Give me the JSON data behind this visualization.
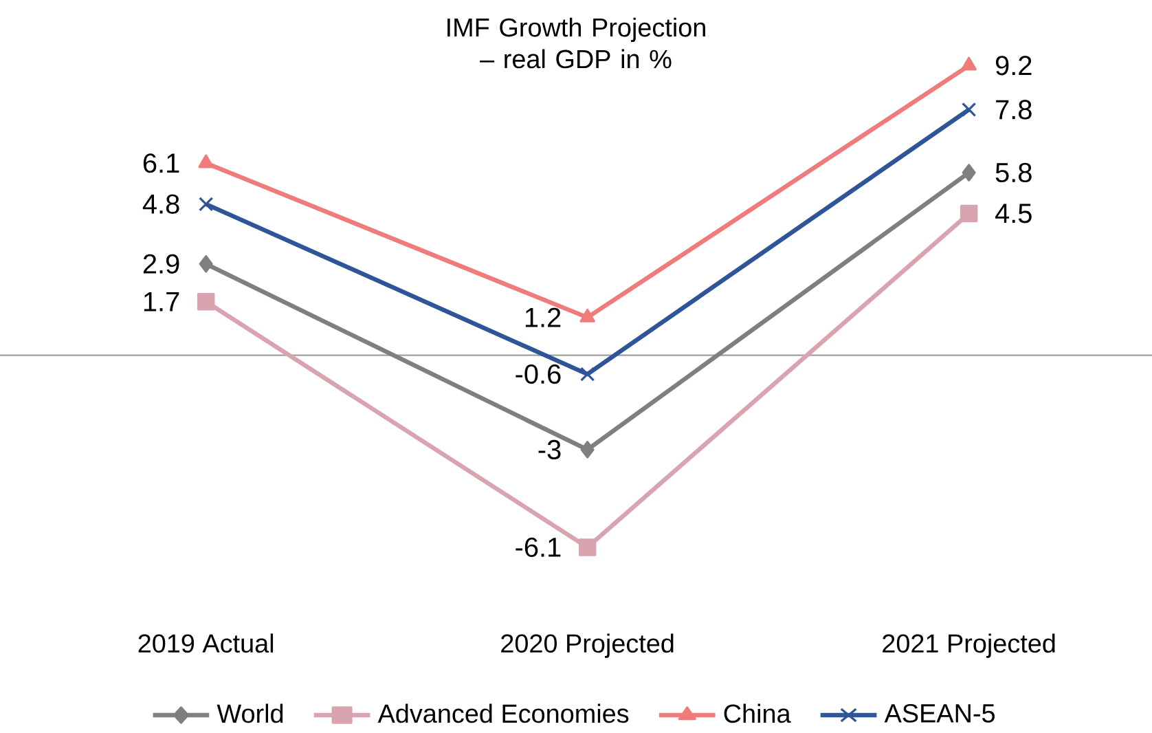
{
  "chart_data": {
    "type": "line",
    "title": "IMF Growth Projection – real GDP in %",
    "categories": [
      "2019 Actual",
      "2020 Projected",
      "2021 Projected"
    ],
    "series": [
      {
        "name": "World",
        "color": "#7f7f7f",
        "marker": "diamond",
        "values": [
          2.9,
          -3,
          5.8
        ]
      },
      {
        "name": "Advanced Economies",
        "color": "#d9a3b0",
        "marker": "square",
        "values": [
          1.7,
          -6.1,
          4.5
        ]
      },
      {
        "name": "China",
        "color": "#f07b7b",
        "marker": "triangle",
        "values": [
          6.1,
          1.2,
          9.2
        ]
      },
      {
        "name": "ASEAN-5",
        "color": "#2e5597",
        "marker": "cross",
        "values": [
          4.8,
          -0.6,
          7.8
        ]
      }
    ],
    "ref_lines": [
      {
        "axis": "y",
        "value": 0,
        "color": "#a0a0a0"
      }
    ],
    "data_labels": true,
    "legend": "bottom",
    "grid": false,
    "line_style": "solid"
  }
}
